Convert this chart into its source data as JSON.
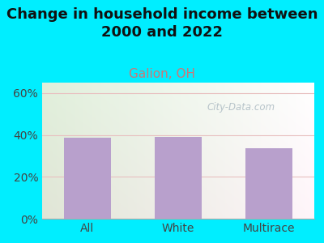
{
  "title": "Change in household income between\n2000 and 2022",
  "subtitle": "Galion, OH",
  "categories": [
    "All",
    "White",
    "Multirace"
  ],
  "values": [
    38.5,
    39.0,
    33.5
  ],
  "bar_color": "#b8a0cc",
  "title_fontsize": 13,
  "subtitle_fontsize": 11,
  "subtitle_color": "#cc7777",
  "ylabel_ticks": [
    "0%",
    "20%",
    "40%",
    "60%"
  ],
  "ytick_vals": [
    0,
    20,
    40,
    60
  ],
  "ylim": [
    0,
    65
  ],
  "bg_outer": "#00eeff",
  "watermark": "City-Data.com",
  "watermark_color": "#b0bec5",
  "grid_color": "#e8c0c0",
  "tick_label_color": "#444444",
  "axis_fontsize": 10
}
